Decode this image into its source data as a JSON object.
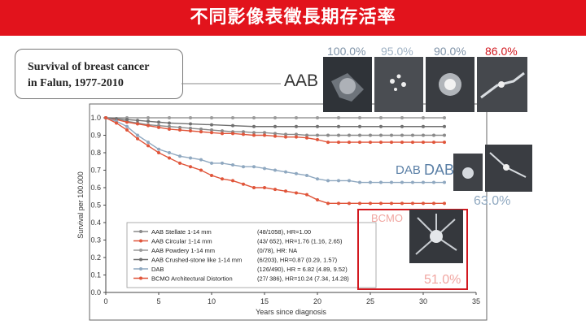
{
  "banner": {
    "title": "不同影像表徵長期存活率"
  },
  "figure_title": {
    "line1": "Survival of breast cancer",
    "line2": "in Falun, 1977-2010"
  },
  "callouts": {
    "aab_label": "AAB",
    "aab_pcts": [
      "100.0%",
      "95.0%",
      "90.0%",
      "86.0%"
    ],
    "dab_label1": "DAB",
    "dab_label2": "DAB",
    "dab_pct": "63.0%",
    "bcmo_label": "BCMO",
    "bcmo_pct": "51.0%"
  },
  "colors": {
    "banner": "#e2131c",
    "blue_series": "#8fa8c0",
    "red_series": "#e0553a",
    "gray_series": "#8a8a8a",
    "highlight": "#d2181f"
  },
  "chart_data": {
    "type": "line",
    "xlabel": "Years since diagnosis",
    "ylabel": "Survival per 100.000",
    "xlim": [
      0,
      35
    ],
    "ylim": [
      0,
      1.0
    ],
    "xticks": [
      "0",
      "5",
      "10",
      "15",
      "20",
      "25",
      "30",
      "35"
    ],
    "yticks": [
      "0.0",
      "0.1",
      "0.2",
      "0.3",
      "0.4",
      "0.5",
      "0.6",
      "0.7",
      "0.8",
      "0.9",
      "1.0"
    ],
    "grid": false,
    "legend_position": "bottom-left",
    "series": [
      {
        "name": "AAB Stellate 1-14 mm",
        "stats": "(48/1058), HR=1.00",
        "color": "#8a8a8a",
        "x": [
          0,
          1,
          2,
          3,
          4,
          5,
          6,
          7,
          8,
          9,
          10,
          11,
          12,
          13,
          14,
          15,
          16,
          17,
          18,
          19,
          20,
          21,
          22,
          23,
          24,
          25,
          26,
          27,
          28,
          29,
          30,
          31,
          32
        ],
        "y": [
          1.0,
          0.99,
          0.98,
          0.97,
          0.96,
          0.955,
          0.95,
          0.945,
          0.94,
          0.935,
          0.93,
          0.925,
          0.92,
          0.92,
          0.915,
          0.915,
          0.91,
          0.905,
          0.905,
          0.9,
          0.9,
          0.9,
          0.9,
          0.9,
          0.9,
          0.9,
          0.9,
          0.9,
          0.9,
          0.9,
          0.9,
          0.9,
          0.9
        ]
      },
      {
        "name": "AAB Circular 1-14 mm",
        "stats": "(43/ 652), HR=1.76 (1.16,  2.65)",
        "color": "#e0553a",
        "x": [
          0,
          1,
          2,
          3,
          4,
          5,
          6,
          7,
          8,
          9,
          10,
          11,
          12,
          13,
          14,
          15,
          16,
          17,
          18,
          19,
          20,
          21,
          22,
          23,
          24,
          25,
          26,
          27,
          28,
          29,
          30,
          31,
          32
        ],
        "y": [
          1.0,
          0.99,
          0.975,
          0.965,
          0.955,
          0.945,
          0.935,
          0.93,
          0.925,
          0.92,
          0.915,
          0.91,
          0.91,
          0.905,
          0.9,
          0.9,
          0.895,
          0.89,
          0.89,
          0.885,
          0.875,
          0.86,
          0.86,
          0.86,
          0.86,
          0.86,
          0.86,
          0.86,
          0.86,
          0.86,
          0.86,
          0.86,
          0.86
        ]
      },
      {
        "name": "AAB Powdery 1-14 mm",
        "stats": "(0/78), HR: NA",
        "color": "#9a9a9a",
        "x": [
          0,
          2,
          4,
          6,
          8,
          10,
          12,
          14,
          16,
          18,
          20,
          22,
          24,
          26,
          28,
          30,
          32
        ],
        "y": [
          1.0,
          1.0,
          1.0,
          1.0,
          1.0,
          1.0,
          1.0,
          1.0,
          1.0,
          1.0,
          1.0,
          1.0,
          1.0,
          1.0,
          1.0,
          1.0,
          1.0
        ]
      },
      {
        "name": "AAB Crushed-stone like 1-14 mm",
        "stats": "(6/203), HR=0.87 (0.29, 1.57)",
        "color": "#707070",
        "x": [
          0,
          1,
          2,
          3,
          4,
          5,
          6,
          8,
          10,
          12,
          14,
          16,
          18,
          20,
          22,
          24,
          26,
          28,
          30,
          32
        ],
        "y": [
          1.0,
          0.995,
          0.99,
          0.985,
          0.98,
          0.975,
          0.97,
          0.965,
          0.96,
          0.955,
          0.95,
          0.95,
          0.95,
          0.95,
          0.95,
          0.95,
          0.95,
          0.95,
          0.95,
          0.95
        ]
      },
      {
        "name": "DAB",
        "stats": "(126/490), HR = 6.82 (4.89, 9.52)",
        "color": "#8fa8c0",
        "x": [
          0,
          1,
          2,
          3,
          4,
          5,
          6,
          7,
          8,
          9,
          10,
          11,
          12,
          13,
          14,
          15,
          16,
          17,
          18,
          19,
          20,
          21,
          22,
          23,
          24,
          25,
          26,
          27,
          28,
          29,
          30,
          31,
          32
        ],
        "y": [
          1.0,
          0.98,
          0.95,
          0.9,
          0.86,
          0.82,
          0.8,
          0.78,
          0.77,
          0.76,
          0.74,
          0.74,
          0.73,
          0.72,
          0.72,
          0.71,
          0.7,
          0.69,
          0.68,
          0.67,
          0.65,
          0.64,
          0.64,
          0.64,
          0.63,
          0.63,
          0.63,
          0.63,
          0.63,
          0.63,
          0.63,
          0.63,
          0.63
        ]
      },
      {
        "name": "BCMO Architectural Distortion",
        "stats": "(27/ 386), HR=10.24 (7.34, 14.28)",
        "color": "#e0553a",
        "x": [
          0,
          1,
          2,
          3,
          4,
          5,
          6,
          7,
          8,
          9,
          10,
          11,
          12,
          13,
          14,
          15,
          16,
          17,
          18,
          19,
          20,
          21,
          22,
          23,
          24,
          25,
          26,
          27,
          28,
          29,
          30,
          31,
          32
        ],
        "y": [
          1.0,
          0.97,
          0.93,
          0.88,
          0.84,
          0.8,
          0.77,
          0.74,
          0.72,
          0.7,
          0.67,
          0.65,
          0.64,
          0.62,
          0.6,
          0.6,
          0.59,
          0.58,
          0.57,
          0.56,
          0.53,
          0.51,
          0.51,
          0.51,
          0.51,
          0.51,
          0.51,
          0.51,
          0.51,
          0.51,
          0.51,
          0.51,
          0.51
        ]
      }
    ]
  }
}
